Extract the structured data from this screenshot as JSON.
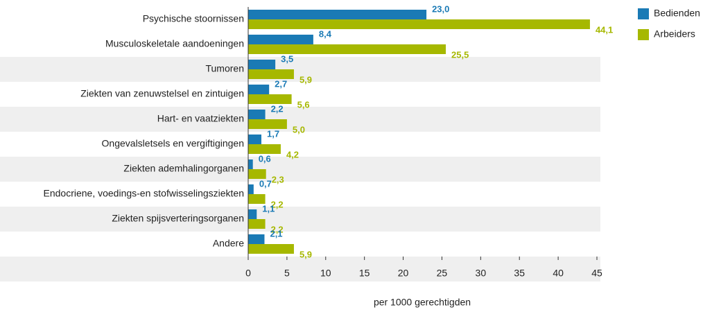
{
  "chart_data": {
    "type": "bar",
    "orientation": "horizontal",
    "categories": [
      "Psychische stoornissen",
      "Musculoskeletale aandoeningen",
      "Tumoren",
      "Ziekten van zenuwstelsel en zintuigen",
      "Hart- en vaatziekten",
      "Ongevalsletsels en vergiftigingen",
      "Ziekten ademhalingorganen",
      "Endocriene, voedings-en stofwisselingsziekten",
      "Ziekten spijsverteringsorganen",
      "Andere"
    ],
    "series": [
      {
        "name": "Bedienden",
        "color": "#1a7ab5",
        "values": [
          23.0,
          8.4,
          3.5,
          2.7,
          2.2,
          1.7,
          0.6,
          0.7,
          1.1,
          2.1
        ],
        "value_labels": [
          "23,0",
          "8,4",
          "3,5",
          "2,7",
          "2,2",
          "1,7",
          "0,6",
          "0,7",
          "1,1",
          "2,1"
        ]
      },
      {
        "name": "Arbeiders",
        "color": "#a6b800",
        "values": [
          44.1,
          25.5,
          5.9,
          5.6,
          5.0,
          4.2,
          2.3,
          2.2,
          2.2,
          5.9
        ],
        "value_labels": [
          "44,1",
          "25,5",
          "5,9",
          "5,6",
          "5,0",
          "4,2",
          "2,3",
          "2,2",
          "2,2",
          "5,9"
        ]
      }
    ],
    "xlabel": "per 1000 gerechtigden",
    "xlim": [
      0,
      45
    ],
    "xticks": [
      0,
      5,
      10,
      15,
      20,
      25,
      30,
      35,
      40,
      45
    ],
    "legend": "top-right"
  }
}
